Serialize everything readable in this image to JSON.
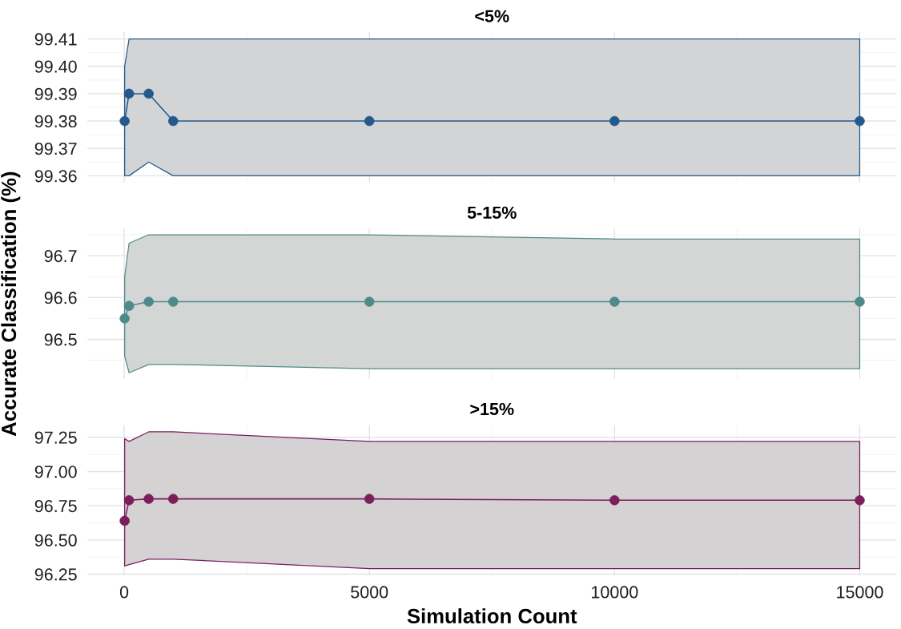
{
  "chart_data": [
    {
      "type": "line",
      "title": "<5%",
      "x": [
        10,
        100,
        500,
        1000,
        5000,
        10000,
        15000
      ],
      "series": [
        {
          "color": "#24598c",
          "values": [
            99.38,
            99.39,
            99.39,
            99.38,
            99.38,
            99.38,
            99.38
          ],
          "lower": [
            99.36,
            99.36,
            99.365,
            99.36,
            99.36,
            99.36,
            99.36
          ],
          "upper": [
            99.4,
            99.41,
            99.41,
            99.41,
            99.41,
            99.41,
            99.41
          ]
        }
      ],
      "xlim": [
        -750,
        15750
      ],
      "xticks": [
        0,
        5000,
        10000,
        15000
      ],
      "ylim": [
        99.3575,
        99.4125
      ],
      "yticks": [
        99.36,
        99.37,
        99.38,
        99.39,
        {
          "value": 99.4,
          "label": "99.40"
        },
        99.41
      ],
      "grid": true,
      "marker": "circle",
      "line_style": "solid",
      "tick_labels": "y"
    },
    {
      "type": "line",
      "title": "5-15%",
      "ylabel": "Accurate Classification (%)",
      "x": [
        10,
        100,
        500,
        1000,
        5000,
        10000,
        15000
      ],
      "series": [
        {
          "color": "#4f8a8b",
          "values": [
            96.55,
            96.58,
            96.59,
            96.59,
            96.59,
            96.59,
            96.59
          ],
          "lower": [
            96.46,
            96.42,
            96.44,
            96.44,
            96.43,
            96.43,
            96.43
          ],
          "upper": [
            96.65,
            96.73,
            96.75,
            96.75,
            96.75,
            96.74,
            96.74
          ]
        }
      ],
      "xlim": [
        -750,
        15750
      ],
      "xticks": [
        0,
        5000,
        10000,
        15000
      ],
      "ylim": [
        96.405,
        96.765
      ],
      "yticks": [
        96.5,
        96.6,
        96.7
      ],
      "grid": true,
      "marker": "circle",
      "line_style": "solid",
      "tick_labels": "y"
    },
    {
      "type": "line",
      "title": ">15%",
      "xlabel": "Simulation Count",
      "x": [
        10,
        100,
        500,
        1000,
        5000,
        10000,
        15000
      ],
      "series": [
        {
          "color": "#7a1f5c",
          "values": [
            96.64,
            96.79,
            96.8,
            96.8,
            96.8,
            96.79,
            96.79
          ],
          "lower": [
            96.31,
            96.32,
            96.36,
            96.36,
            96.29,
            96.29,
            96.29
          ],
          "upper": [
            97.24,
            97.22,
            97.29,
            97.29,
            97.22,
            97.22,
            97.22
          ]
        }
      ],
      "xlim": [
        -750,
        15750
      ],
      "xticks": [
        0,
        5000,
        10000,
        15000
      ],
      "ylim": [
        96.24,
        97.34
      ],
      "yticks": [
        97.25,
        {
          "value": 97.0,
          "label": "97.00"
        },
        96.75,
        {
          "value": 96.5,
          "label": "96.50"
        },
        96.25
      ],
      "grid": true,
      "marker": "circle",
      "line_style": "solid"
    }
  ]
}
